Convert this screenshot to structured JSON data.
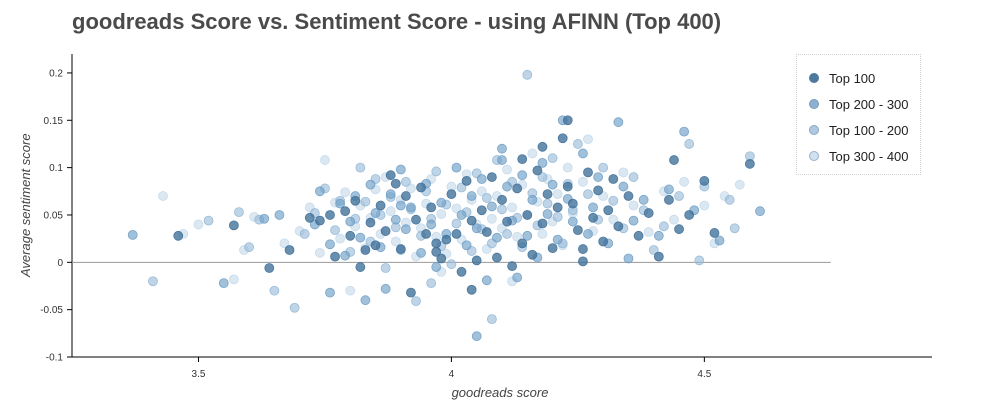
{
  "chart_data": {
    "type": "scatter",
    "title": "goodreads Score vs. Sentiment Score - using AFINN (Top 400)",
    "xlabel": "goodreads score",
    "ylabel": "Average sentiment score",
    "xlim": [
      3.25,
      4.95
    ],
    "ylim": [
      -0.1,
      0.22
    ],
    "x_ticks": [
      3.5,
      4,
      4.5
    ],
    "x_tick_labels": [
      "3.5",
      "4",
      "4.5"
    ],
    "y_ticks": [
      -0.1,
      -0.05,
      0,
      0.05,
      0.1,
      0.15,
      0.2
    ],
    "y_tick_labels": [
      "-0.1",
      "-0.05",
      "0",
      "0.05",
      "0.1",
      "0.15",
      "0.2"
    ],
    "grid": false,
    "reference_line": {
      "y": 0,
      "x_range": [
        3.25,
        4.75
      ],
      "color": "#999999"
    },
    "legend_position": "top-right",
    "series": [
      {
        "name": "Top 100",
        "color": "#3f6f99",
        "opacity": 0.78,
        "points": [
          [
            3.46,
            0.028
          ],
          [
            3.57,
            0.039
          ],
          [
            3.64,
            -0.006
          ],
          [
            3.68,
            0.013
          ],
          [
            3.72,
            0.047
          ],
          [
            3.74,
            0.044
          ],
          [
            3.76,
            0.05
          ],
          [
            3.77,
            0.006
          ],
          [
            3.79,
            0.054
          ],
          [
            3.8,
            0.028
          ],
          [
            3.81,
            0.065
          ],
          [
            3.82,
            -0.005
          ],
          [
            3.84,
            0.042
          ],
          [
            3.85,
            0.018
          ],
          [
            3.86,
            0.06
          ],
          [
            3.87,
            0.033
          ],
          [
            3.88,
            0.092
          ],
          [
            3.89,
            0.083
          ],
          [
            3.9,
            0.014
          ],
          [
            3.91,
            0.07
          ],
          [
            3.92,
            -0.032
          ],
          [
            3.93,
            0.045
          ],
          [
            3.95,
            0.03
          ],
          [
            3.96,
            0.058
          ],
          [
            3.97,
            0.02
          ],
          [
            3.98,
            0.004
          ],
          [
            3.99,
            0.024
          ],
          [
            4.0,
            0.072
          ],
          [
            4.01,
            0.03
          ],
          [
            4.02,
            -0.01
          ],
          [
            4.03,
            0.086
          ],
          [
            4.04,
            0.044
          ],
          [
            4.05,
            0.002
          ],
          [
            4.06,
            0.055
          ],
          [
            4.07,
            0.032
          ],
          [
            4.08,
            0.09
          ],
          [
            4.09,
            0.005
          ],
          [
            4.1,
            0.066
          ],
          [
            4.11,
            0.043
          ],
          [
            4.12,
            -0.004
          ],
          [
            4.13,
            0.078
          ],
          [
            4.14,
            0.02
          ],
          [
            4.15,
            0.05
          ],
          [
            4.16,
            0.008
          ],
          [
            4.17,
            0.097
          ],
          [
            4.18,
            0.041
          ],
          [
            4.19,
            0.072
          ],
          [
            4.2,
            0.015
          ],
          [
            4.21,
            0.058
          ],
          [
            4.22,
            0.131
          ],
          [
            4.23,
            0.08
          ],
          [
            4.24,
            0.062
          ],
          [
            4.25,
            0.034
          ],
          [
            4.26,
            0.014
          ],
          [
            4.27,
            0.095
          ],
          [
            4.28,
            0.047
          ],
          [
            4.29,
            0.076
          ],
          [
            4.3,
            0.022
          ],
          [
            4.31,
            0.055
          ],
          [
            4.32,
            0.088
          ],
          [
            4.33,
            0.038
          ],
          [
            4.35,
            0.07
          ],
          [
            4.37,
            0.028
          ],
          [
            4.39,
            0.052
          ],
          [
            4.41,
            0.006
          ],
          [
            4.43,
            0.066
          ],
          [
            4.45,
            0.035
          ],
          [
            4.47,
            0.05
          ],
          [
            4.5,
            0.086
          ],
          [
            4.52,
            0.031
          ],
          [
            4.59,
            0.104
          ],
          [
            4.23,
            0.15
          ],
          [
            4.44,
            0.108
          ],
          [
            4.04,
            -0.029
          ],
          [
            3.97,
            0.011
          ],
          [
            4.14,
            0.109
          ],
          [
            3.83,
            0.013
          ],
          [
            4.26,
            0.001
          ],
          [
            4.18,
            0.122
          ],
          [
            3.94,
            0.079
          ]
        ]
      },
      {
        "name": "Top 200 - 300",
        "color": "#6f9ec6",
        "opacity": 0.65,
        "points": [
          [
            3.37,
            0.029
          ],
          [
            3.55,
            -0.022
          ],
          [
            3.63,
            0.046
          ],
          [
            3.66,
            0.05
          ],
          [
            3.73,
            0.04
          ],
          [
            3.74,
            0.075
          ],
          [
            3.76,
            -0.032
          ],
          [
            3.78,
            0.062
          ],
          [
            3.79,
            0.007
          ],
          [
            3.8,
            0.043
          ],
          [
            3.81,
            0.07
          ],
          [
            3.82,
            0.026
          ],
          [
            3.83,
            -0.04
          ],
          [
            3.84,
            0.082
          ],
          [
            3.85,
            0.052
          ],
          [
            3.86,
            0.016
          ],
          [
            3.87,
            -0.028
          ],
          [
            3.88,
            0.072
          ],
          [
            3.89,
            0.045
          ],
          [
            3.9,
            0.098
          ],
          [
            3.91,
            0.035
          ],
          [
            3.92,
            0.058
          ],
          [
            3.94,
            0.01
          ],
          [
            3.95,
            0.083
          ],
          [
            3.96,
            0.04
          ],
          [
            3.97,
            -0.005
          ],
          [
            3.98,
            0.063
          ],
          [
            3.99,
            0.03
          ],
          [
            4.01,
            0.1
          ],
          [
            4.02,
            0.05
          ],
          [
            4.03,
            0.018
          ],
          [
            4.04,
            0.07
          ],
          [
            4.05,
            0.036
          ],
          [
            4.06,
            0.088
          ],
          [
            4.07,
            -0.019
          ],
          [
            4.08,
            0.059
          ],
          [
            4.09,
            0.026
          ],
          [
            4.1,
            0.108
          ],
          [
            4.11,
            0.08
          ],
          [
            4.12,
            0.044
          ],
          [
            4.13,
            -0.016
          ],
          [
            4.14,
            0.092
          ],
          [
            4.15,
            0.028
          ],
          [
            4.16,
            0.066
          ],
          [
            4.17,
            0.005
          ],
          [
            4.18,
            0.105
          ],
          [
            4.19,
            0.051
          ],
          [
            4.2,
            0.082
          ],
          [
            4.21,
            0.024
          ],
          [
            4.22,
            0.15
          ],
          [
            4.23,
            0.067
          ],
          [
            4.24,
            0.043
          ],
          [
            4.26,
            0.115
          ],
          [
            4.27,
            0.03
          ],
          [
            4.28,
            0.058
          ],
          [
            4.29,
            0.09
          ],
          [
            4.31,
            0.02
          ],
          [
            4.33,
            0.148
          ],
          [
            4.34,
            0.08
          ],
          [
            4.36,
            0.044
          ],
          [
            4.38,
            0.066
          ],
          [
            4.41,
            0.028
          ],
          [
            4.43,
            0.077
          ],
          [
            4.46,
            0.138
          ],
          [
            4.48,
            0.055
          ],
          [
            4.53,
            0.023
          ],
          [
            4.61,
            0.054
          ],
          [
            4.05,
            -0.078
          ],
          [
            3.76,
            0.019
          ],
          [
            3.9,
            0.06
          ],
          [
            4.35,
            0.004
          ],
          [
            4.1,
            0.12
          ]
        ]
      },
      {
        "name": "Top 100 - 200",
        "color": "#94b8d6",
        "opacity": 0.6,
        "points": [
          [
            3.41,
            -0.02
          ],
          [
            3.52,
            0.044
          ],
          [
            3.6,
            0.016
          ],
          [
            3.62,
            0.045
          ],
          [
            3.65,
            -0.03
          ],
          [
            3.69,
            -0.048
          ],
          [
            3.71,
            0.03
          ],
          [
            3.73,
            0.052
          ],
          [
            3.75,
            0.078
          ],
          [
            3.77,
            0.034
          ],
          [
            3.78,
            0.065
          ],
          [
            3.8,
            0.011
          ],
          [
            3.81,
            0.046
          ],
          [
            3.82,
            0.1
          ],
          [
            3.83,
            0.064
          ],
          [
            3.84,
            0.022
          ],
          [
            3.85,
            0.088
          ],
          [
            3.86,
            0.05
          ],
          [
            3.87,
            -0.006
          ],
          [
            3.88,
            0.069
          ],
          [
            3.89,
            0.037
          ],
          [
            3.9,
            0.013
          ],
          [
            3.91,
            0.085
          ],
          [
            3.92,
            0.056
          ],
          [
            3.93,
            -0.041
          ],
          [
            3.94,
            0.028
          ],
          [
            3.95,
            0.075
          ],
          [
            3.96,
            0.046
          ],
          [
            3.97,
            0.096
          ],
          [
            3.98,
            0.017
          ],
          [
            3.99,
            0.061
          ],
          [
            4.0,
            -0.002
          ],
          [
            4.01,
            0.041
          ],
          [
            4.02,
            0.079
          ],
          [
            4.03,
            0.053
          ],
          [
            4.04,
            0.012
          ],
          [
            4.05,
            0.094
          ],
          [
            4.06,
            0.035
          ],
          [
            4.07,
            0.068
          ],
          [
            4.08,
            0.02
          ],
          [
            4.09,
            0.108
          ],
          [
            4.1,
            0.056
          ],
          [
            4.11,
            0.03
          ],
          [
            4.12,
            0.085
          ],
          [
            4.13,
            0.047
          ],
          [
            4.14,
            0.016
          ],
          [
            4.15,
            0.198
          ],
          [
            4.16,
            0.073
          ],
          [
            4.17,
            0.039
          ],
          [
            4.18,
            0.09
          ],
          [
            4.19,
            0.062
          ],
          [
            4.2,
            0.11
          ],
          [
            4.21,
            0.048
          ],
          [
            4.22,
            0.02
          ],
          [
            4.23,
            0.083
          ],
          [
            4.24,
            0.055
          ],
          [
            4.25,
            0.125
          ],
          [
            4.27,
            0.072
          ],
          [
            4.29,
            0.045
          ],
          [
            4.3,
            0.1
          ],
          [
            4.32,
            0.065
          ],
          [
            4.34,
            0.036
          ],
          [
            4.36,
            0.09
          ],
          [
            4.38,
            0.055
          ],
          [
            4.4,
            0.013
          ],
          [
            4.42,
            0.038
          ],
          [
            4.45,
            0.07
          ],
          [
            4.47,
            0.125
          ],
          [
            4.5,
            0.08
          ],
          [
            4.55,
            0.066
          ],
          [
            4.59,
            0.112
          ],
          [
            4.49,
            0.002
          ],
          [
            4.56,
            0.036
          ],
          [
            3.58,
            0.053
          ],
          [
            4.08,
            -0.06
          ],
          [
            3.96,
            -0.022
          ]
        ]
      },
      {
        "name": "Top 300 - 400",
        "color": "#c3d8ea",
        "opacity": 0.6,
        "points": [
          [
            3.43,
            0.07
          ],
          [
            3.5,
            0.04
          ],
          [
            3.59,
            0.013
          ],
          [
            3.61,
            0.048
          ],
          [
            3.67,
            0.02
          ],
          [
            3.7,
            0.033
          ],
          [
            3.72,
            0.058
          ],
          [
            3.75,
            0.108
          ],
          [
            3.77,
            0.063
          ],
          [
            3.78,
            0.025
          ],
          [
            3.79,
            0.074
          ],
          [
            3.8,
            -0.03
          ],
          [
            3.81,
            0.038
          ],
          [
            3.82,
            0.06
          ],
          [
            3.83,
            0.015
          ],
          [
            3.84,
            0.047
          ],
          [
            3.85,
            0.077
          ],
          [
            3.86,
            0.03
          ],
          [
            3.87,
            0.09
          ],
          [
            3.88,
            0.054
          ],
          [
            3.89,
            0.022
          ],
          [
            3.9,
            0.066
          ],
          [
            3.91,
            0.042
          ],
          [
            3.92,
            0.078
          ],
          [
            3.93,
            0.006
          ],
          [
            3.94,
            0.036
          ],
          [
            3.95,
            0.062
          ],
          [
            3.96,
            0.088
          ],
          [
            3.97,
            0.027
          ],
          [
            3.98,
            0.051
          ],
          [
            3.99,
            0.009
          ],
          [
            4.0,
            0.08
          ],
          [
            4.01,
            0.057
          ],
          [
            4.02,
            0.024
          ],
          [
            4.03,
            0.093
          ],
          [
            4.04,
            0.066
          ],
          [
            4.05,
            0.04
          ],
          [
            4.06,
            0.075
          ],
          [
            4.07,
            0.014
          ],
          [
            4.08,
            0.046
          ],
          [
            4.09,
            0.07
          ],
          [
            4.1,
            0.036
          ],
          [
            4.11,
            0.098
          ],
          [
            4.12,
            0.058
          ],
          [
            4.13,
            0.027
          ],
          [
            4.14,
            0.082
          ],
          [
            4.15,
            0.05
          ],
          [
            4.16,
            0.115
          ],
          [
            4.17,
            0.064
          ],
          [
            4.18,
            0.03
          ],
          [
            4.19,
            0.088
          ],
          [
            4.2,
            0.043
          ],
          [
            4.21,
            0.072
          ],
          [
            4.22,
            0.018
          ],
          [
            4.23,
            0.1
          ],
          [
            4.24,
            0.052
          ],
          [
            4.26,
            0.085
          ],
          [
            4.28,
            0.033
          ],
          [
            4.3,
            0.07
          ],
          [
            4.32,
            0.045
          ],
          [
            4.34,
            0.095
          ],
          [
            4.36,
            0.06
          ],
          [
            4.39,
            0.032
          ],
          [
            4.42,
            0.075
          ],
          [
            4.44,
            0.045
          ],
          [
            4.46,
            0.085
          ],
          [
            4.5,
            0.06
          ],
          [
            4.52,
            0.02
          ],
          [
            4.54,
            0.07
          ],
          [
            4.57,
            0.082
          ],
          [
            3.47,
            0.03
          ],
          [
            3.57,
            -0.018
          ],
          [
            3.98,
            -0.01
          ],
          [
            4.27,
            0.13
          ],
          [
            3.74,
            0.01
          ],
          [
            4.12,
            -0.02
          ]
        ]
      }
    ]
  }
}
